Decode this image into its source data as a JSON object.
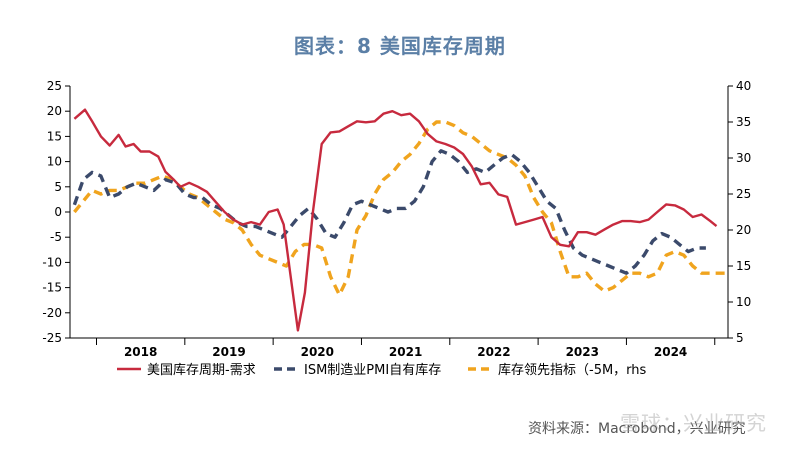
{
  "title": "图表：8 美国库存周期",
  "source_text": "资料来源：Macrobond，兴业研究",
  "watermark_text": "雪球：兴业研究",
  "colors": {
    "series1": "#c72a3e",
    "series2": "#3b4a6b",
    "series3": "#f0a41e"
  },
  "chart_data": {
    "type": "line",
    "title": "美国库存周期",
    "x_range": [
      2017.7,
      2025.15
    ],
    "years": [
      "2018",
      "2019",
      "2020",
      "2021",
      "2022",
      "2023",
      "2024"
    ],
    "left_axis": {
      "range": [
        -25,
        25
      ],
      "ticks": [
        25,
        20,
        15,
        10,
        5,
        0,
        -5,
        -10,
        -15,
        -20,
        -25
      ]
    },
    "right_axis": {
      "range": [
        5,
        40
      ],
      "ticks": [
        40,
        35,
        30,
        25,
        20,
        15,
        10,
        5
      ]
    },
    "legend_placement": "bottom",
    "grid": false,
    "series": [
      {
        "name": "美国库存周期-需求",
        "axis": "left",
        "style": "solid",
        "points": [
          [
            2017.75,
            18.5
          ],
          [
            2017.87,
            20.3
          ],
          [
            2017.95,
            18.0
          ],
          [
            2018.05,
            15.0
          ],
          [
            2018.15,
            13.2
          ],
          [
            2018.25,
            15.3
          ],
          [
            2018.33,
            13.0
          ],
          [
            2018.42,
            13.5
          ],
          [
            2018.5,
            12.0
          ],
          [
            2018.6,
            12.0
          ],
          [
            2018.7,
            11.0
          ],
          [
            2018.78,
            8.0
          ],
          [
            2018.87,
            6.5
          ],
          [
            2018.95,
            5.0
          ],
          [
            2019.05,
            5.8
          ],
          [
            2019.15,
            5.0
          ],
          [
            2019.25,
            4.0
          ],
          [
            2019.35,
            2.0
          ],
          [
            2019.45,
            0.0
          ],
          [
            2019.55,
            -1.5
          ],
          [
            2019.65,
            -2.5
          ],
          [
            2019.75,
            -2.0
          ],
          [
            2019.85,
            -2.5
          ],
          [
            2019.95,
            0.0
          ],
          [
            2020.05,
            0.5
          ],
          [
            2020.12,
            -2.5
          ],
          [
            2020.2,
            -13.0
          ],
          [
            2020.28,
            -23.5
          ],
          [
            2020.36,
            -16.0
          ],
          [
            2020.45,
            0.0
          ],
          [
            2020.55,
            13.5
          ],
          [
            2020.65,
            15.8
          ],
          [
            2020.75,
            16.0
          ],
          [
            2020.85,
            17.0
          ],
          [
            2020.95,
            18.0
          ],
          [
            2021.05,
            17.8
          ],
          [
            2021.15,
            18.0
          ],
          [
            2021.25,
            19.5
          ],
          [
            2021.35,
            20.0
          ],
          [
            2021.45,
            19.2
          ],
          [
            2021.55,
            19.5
          ],
          [
            2021.65,
            18.0
          ],
          [
            2021.75,
            15.5
          ],
          [
            2021.85,
            14.0
          ],
          [
            2021.95,
            13.5
          ],
          [
            2022.05,
            12.8
          ],
          [
            2022.15,
            11.5
          ],
          [
            2022.25,
            9.0
          ],
          [
            2022.35,
            5.5
          ],
          [
            2022.45,
            5.8
          ],
          [
            2022.55,
            3.5
          ],
          [
            2022.65,
            3.0
          ],
          [
            2022.75,
            -2.5
          ],
          [
            2022.85,
            -2.0
          ],
          [
            2022.95,
            -1.5
          ],
          [
            2023.05,
            -1.0
          ],
          [
            2023.15,
            -5.0
          ],
          [
            2023.25,
            -6.5
          ],
          [
            2023.35,
            -6.8
          ],
          [
            2023.45,
            -4.0
          ],
          [
            2023.55,
            -4.0
          ],
          [
            2023.65,
            -4.5
          ],
          [
            2023.75,
            -3.5
          ],
          [
            2023.85,
            -2.5
          ],
          [
            2023.95,
            -1.8
          ],
          [
            2024.05,
            -1.8
          ],
          [
            2024.15,
            -2.0
          ],
          [
            2024.25,
            -1.5
          ],
          [
            2024.35,
            0.0
          ],
          [
            2024.45,
            1.5
          ],
          [
            2024.55,
            1.3
          ],
          [
            2024.65,
            0.5
          ],
          [
            2024.75,
            -1.0
          ],
          [
            2024.85,
            -0.5
          ],
          [
            2024.95,
            -1.8
          ],
          [
            2025.02,
            -2.8
          ]
        ]
      },
      {
        "name": "ISM制造业PMI自有库存",
        "axis": "right",
        "style": "dash",
        "points": [
          [
            2017.75,
            23.5
          ],
          [
            2017.85,
            27.0
          ],
          [
            2017.95,
            28.0
          ],
          [
            2018.05,
            27.5
          ],
          [
            2018.15,
            24.5
          ],
          [
            2018.25,
            25.0
          ],
          [
            2018.35,
            26.0
          ],
          [
            2018.45,
            26.5
          ],
          [
            2018.55,
            26.0
          ],
          [
            2018.65,
            25.5
          ],
          [
            2018.78,
            27.0
          ],
          [
            2018.9,
            26.5
          ],
          [
            2019.0,
            25.0
          ],
          [
            2019.1,
            24.5
          ],
          [
            2019.2,
            24.5
          ],
          [
            2019.3,
            23.5
          ],
          [
            2019.4,
            23.0
          ],
          [
            2019.5,
            22.0
          ],
          [
            2019.6,
            21.0
          ],
          [
            2019.7,
            20.5
          ],
          [
            2019.8,
            20.5
          ],
          [
            2019.9,
            20.0
          ],
          [
            2020.0,
            19.5
          ],
          [
            2020.1,
            19.0
          ],
          [
            2020.2,
            20.5
          ],
          [
            2020.3,
            22.0
          ],
          [
            2020.4,
            23.0
          ],
          [
            2020.5,
            21.5
          ],
          [
            2020.6,
            19.5
          ],
          [
            2020.7,
            19.0
          ],
          [
            2020.8,
            21.0
          ],
          [
            2020.9,
            23.5
          ],
          [
            2021.0,
            24.0
          ],
          [
            2021.1,
            23.5
          ],
          [
            2021.2,
            23.0
          ],
          [
            2021.3,
            22.5
          ],
          [
            2021.4,
            23.0
          ],
          [
            2021.5,
            23.0
          ],
          [
            2021.6,
            24.0
          ],
          [
            2021.7,
            26.0
          ],
          [
            2021.8,
            29.5
          ],
          [
            2021.9,
            31.0
          ],
          [
            2022.0,
            30.5
          ],
          [
            2022.1,
            29.5
          ],
          [
            2022.2,
            28.0
          ],
          [
            2022.3,
            28.5
          ],
          [
            2022.4,
            28.0
          ],
          [
            2022.5,
            29.0
          ],
          [
            2022.6,
            30.0
          ],
          [
            2022.7,
            30.5
          ],
          [
            2022.8,
            29.5
          ],
          [
            2022.9,
            28.0
          ],
          [
            2023.0,
            26.0
          ],
          [
            2023.1,
            24.0
          ],
          [
            2023.2,
            23.0
          ],
          [
            2023.3,
            20.0
          ],
          [
            2023.4,
            17.5
          ],
          [
            2023.5,
            16.5
          ],
          [
            2023.6,
            16.0
          ],
          [
            2023.7,
            15.5
          ],
          [
            2023.8,
            15.0
          ],
          [
            2023.9,
            14.5
          ],
          [
            2024.0,
            14.0
          ],
          [
            2024.1,
            15.0
          ],
          [
            2024.2,
            16.5
          ],
          [
            2024.3,
            18.5
          ],
          [
            2024.4,
            19.5
          ],
          [
            2024.5,
            19.0
          ],
          [
            2024.6,
            18.0
          ],
          [
            2024.7,
            17.0
          ],
          [
            2024.8,
            17.5
          ],
          [
            2024.9,
            17.5
          ]
        ]
      },
      {
        "name": "库存领先指标（-5M，rhs",
        "axis": "right",
        "style": "dash",
        "points": [
          [
            2017.75,
            22.5
          ],
          [
            2017.85,
            24.0
          ],
          [
            2017.95,
            25.5
          ],
          [
            2018.05,
            25.0
          ],
          [
            2018.15,
            25.5
          ],
          [
            2018.25,
            25.5
          ],
          [
            2018.35,
            26.0
          ],
          [
            2018.45,
            26.5
          ],
          [
            2018.55,
            26.5
          ],
          [
            2018.65,
            27.0
          ],
          [
            2018.75,
            27.5
          ],
          [
            2018.85,
            27.0
          ],
          [
            2018.95,
            26.0
          ],
          [
            2019.05,
            25.0
          ],
          [
            2019.15,
            24.5
          ],
          [
            2019.25,
            23.5
          ],
          [
            2019.35,
            22.5
          ],
          [
            2019.45,
            21.5
          ],
          [
            2019.55,
            21.0
          ],
          [
            2019.65,
            20.0
          ],
          [
            2019.75,
            18.0
          ],
          [
            2019.85,
            16.5
          ],
          [
            2019.95,
            16.0
          ],
          [
            2020.05,
            15.5
          ],
          [
            2020.15,
            15.0
          ],
          [
            2020.25,
            17.0
          ],
          [
            2020.35,
            18.0
          ],
          [
            2020.45,
            18.0
          ],
          [
            2020.55,
            17.5
          ],
          [
            2020.65,
            13.5
          ],
          [
            2020.75,
            11.0
          ],
          [
            2020.85,
            13.5
          ],
          [
            2020.95,
            20.0
          ],
          [
            2021.05,
            22.0
          ],
          [
            2021.15,
            25.0
          ],
          [
            2021.25,
            27.0
          ],
          [
            2021.35,
            28.0
          ],
          [
            2021.45,
            29.5
          ],
          [
            2021.55,
            30.5
          ],
          [
            2021.65,
            32.0
          ],
          [
            2021.75,
            34.0
          ],
          [
            2021.85,
            35.0
          ],
          [
            2021.95,
            35.0
          ],
          [
            2022.05,
            34.5
          ],
          [
            2022.15,
            33.5
          ],
          [
            2022.25,
            33.0
          ],
          [
            2022.35,
            32.0
          ],
          [
            2022.45,
            31.0
          ],
          [
            2022.55,
            30.5
          ],
          [
            2022.65,
            30.0
          ],
          [
            2022.75,
            29.0
          ],
          [
            2022.85,
            27.5
          ],
          [
            2022.95,
            24.5
          ],
          [
            2023.05,
            22.5
          ],
          [
            2023.15,
            21.0
          ],
          [
            2023.25,
            17.0
          ],
          [
            2023.35,
            13.5
          ],
          [
            2023.45,
            13.5
          ],
          [
            2023.55,
            14.0
          ],
          [
            2023.65,
            12.5
          ],
          [
            2023.75,
            11.5
          ],
          [
            2023.85,
            12.0
          ],
          [
            2023.95,
            13.0
          ],
          [
            2024.05,
            14.0
          ],
          [
            2024.15,
            14.0
          ],
          [
            2024.25,
            13.5
          ],
          [
            2024.35,
            14.0
          ],
          [
            2024.45,
            16.5
          ],
          [
            2024.55,
            17.0
          ],
          [
            2024.65,
            16.5
          ],
          [
            2024.75,
            15.0
          ],
          [
            2024.85,
            14.0
          ],
          [
            2024.95,
            14.0
          ],
          [
            2025.05,
            14.0
          ],
          [
            2025.15,
            14.0
          ]
        ]
      }
    ]
  }
}
